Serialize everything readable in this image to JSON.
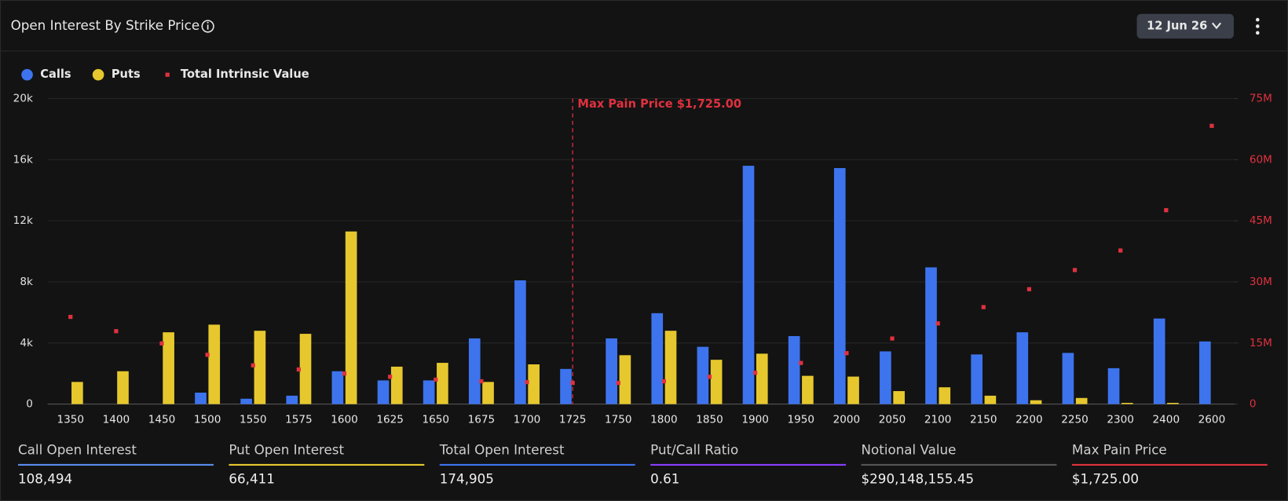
{
  "chart_data": {
    "type": "bar",
    "title": "Open Interest By Strike Price",
    "date": "12 Jun 26",
    "categories": [
      "1350",
      "1400",
      "1450",
      "1500",
      "1550",
      "1575",
      "1600",
      "1625",
      "1650",
      "1675",
      "1700",
      "1725",
      "1750",
      "1800",
      "1850",
      "1900",
      "1950",
      "2000",
      "2050",
      "2100",
      "2150",
      "2200",
      "2250",
      "2300",
      "2400",
      "2600"
    ],
    "series": [
      {
        "name": "Calls",
        "color": "#3d74ee",
        "values": [
          0,
          0,
          0,
          750,
          350,
          550,
          2150,
          1550,
          1550,
          4300,
          8100,
          2300,
          4300,
          5950,
          3750,
          15600,
          4450,
          15450,
          3450,
          8950,
          3250,
          4700,
          3350,
          2350,
          5600,
          4100
        ]
      },
      {
        "name": "Puts",
        "color": "#e6c82e",
        "values": [
          1450,
          2150,
          4700,
          5200,
          4800,
          4600,
          11300,
          2450,
          2700,
          1450,
          2600,
          0,
          3200,
          4800,
          2900,
          3300,
          1850,
          1800,
          850,
          1100,
          550,
          250,
          400,
          80,
          80,
          0
        ]
      },
      {
        "name": "Total Intrinsic Value",
        "color": "#e0313f",
        "axis": "y2",
        "values": [
          21400000,
          17900000,
          14900000,
          12100000,
          9500000,
          8500000,
          7500000,
          6700000,
          6000000,
          5600000,
          5400000,
          5200000,
          5200000,
          5600000,
          6700000,
          7700000,
          10100000,
          12500000,
          16100000,
          19800000,
          23800000,
          28200000,
          32900000,
          37700000,
          47600000,
          68300000
        ]
      }
    ],
    "ylim": [
      0,
      20000
    ],
    "yticks": [
      0,
      {
        "value": 4000,
        "label": "4k"
      },
      {
        "value": 8000,
        "label": "8k"
      },
      {
        "value": 12000,
        "label": "12k"
      },
      {
        "value": 16000,
        "label": "16k"
      },
      {
        "value": 20000,
        "label": "20k"
      }
    ],
    "y2lim": [
      0,
      75000000
    ],
    "y2ticks": [
      0,
      {
        "value": 15000000,
        "label": "15M"
      },
      {
        "value": 30000000,
        "label": "30M"
      },
      {
        "value": 45000000,
        "label": "45M"
      },
      {
        "value": 60000000,
        "label": "60M"
      },
      {
        "value": 75000000,
        "label": "75M"
      }
    ],
    "y2color": "#e0313f",
    "grid": true,
    "annotation": {
      "text": "Max Pain Price $1,725.00",
      "x": "1725",
      "color": "#e0313f"
    }
  },
  "stats": [
    {
      "label": "Call Open Interest",
      "value": "108,494",
      "color": "#5b8def"
    },
    {
      "label": "Put Open Interest",
      "value": "66,411",
      "color": "#e6c82e"
    },
    {
      "label": "Total Open Interest",
      "value": "174,905",
      "color": "#3d74ee"
    },
    {
      "label": "Put/Call Ratio",
      "value": "0.61",
      "color": "#8b3dff"
    },
    {
      "label": "Notional Value",
      "value": "$290,148,155.45",
      "color": "#555555"
    },
    {
      "label": "Max Pain Price",
      "value": "$1,725.00",
      "color": "#e0313f"
    }
  ]
}
